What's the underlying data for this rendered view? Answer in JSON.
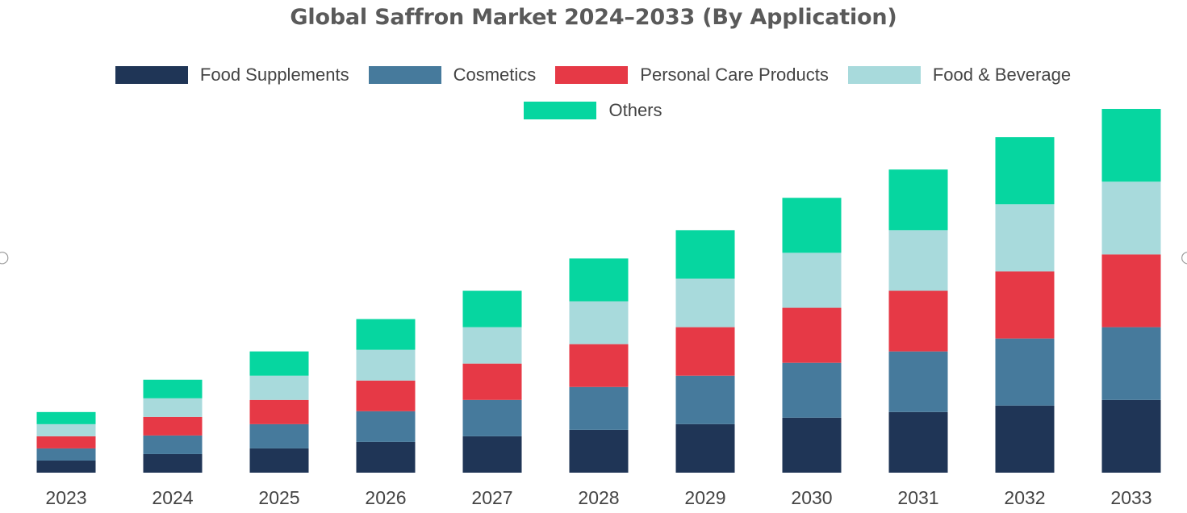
{
  "chart_data": {
    "type": "bar",
    "stacked": true,
    "title": "Global Saffron Market 2024–2033 (By Application)",
    "categories": [
      "2023",
      "2024",
      "2025",
      "2026",
      "2027",
      "2028",
      "2029",
      "2030",
      "2031",
      "2032",
      "2033"
    ],
    "series": [
      {
        "name": "Food Supplements",
        "color": "#1f3556",
        "values": [
          15,
          23,
          30,
          38,
          45,
          53,
          60,
          68,
          75,
          83,
          90
        ]
      },
      {
        "name": "Cosmetics",
        "color": "#467a9c",
        "values": [
          15,
          23,
          30,
          38,
          45,
          53,
          60,
          68,
          75,
          83,
          90
        ]
      },
      {
        "name": "Personal Care Products",
        "color": "#e63946",
        "values": [
          15,
          23,
          30,
          38,
          45,
          53,
          60,
          68,
          75,
          83,
          90
        ]
      },
      {
        "name": "Food & Beverage",
        "color": "#a8dadc",
        "values": [
          15,
          23,
          30,
          38,
          45,
          53,
          60,
          68,
          75,
          83,
          90
        ]
      },
      {
        "name": "Others",
        "color": "#06d6a0",
        "values": [
          15,
          23,
          30,
          38,
          45,
          53,
          60,
          68,
          75,
          83,
          90
        ]
      }
    ],
    "xlabel": "",
    "ylabel": "",
    "ylim": [
      0,
      460
    ],
    "grid": false,
    "legend_position": "top"
  }
}
